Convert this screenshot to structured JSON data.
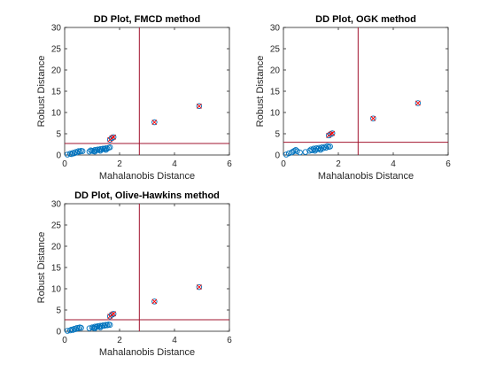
{
  "chart_data": [
    {
      "type": "scatter",
      "title": "DD Plot, FMCD method",
      "xlabel": "Mahalanobis Distance",
      "ylabel": "Robust Distance",
      "xlim": [
        0,
        6
      ],
      "ylim": [
        0,
        30
      ],
      "xticks": [
        "0",
        "2",
        "4",
        "6"
      ],
      "yticks": [
        "0",
        "5",
        "10",
        "15",
        "20",
        "25",
        "30"
      ],
      "cutoff_x": 2.72,
      "cutoff_y": 2.72,
      "grid": false,
      "colors": {
        "inlier": "#0072bd",
        "outlier_marker": "#ff0000",
        "cutoff_line": "#a2142f"
      },
      "inliers": [
        [
          0.1,
          0.1
        ],
        [
          0.2,
          0.3
        ],
        [
          0.25,
          0.2
        ],
        [
          0.3,
          0.5
        ],
        [
          0.35,
          0.4
        ],
        [
          0.4,
          0.7
        ],
        [
          0.45,
          0.6
        ],
        [
          0.5,
          0.9
        ],
        [
          0.55,
          0.8
        ],
        [
          0.6,
          1.0
        ],
        [
          0.65,
          0.9
        ],
        [
          0.9,
          0.8
        ],
        [
          1.0,
          1.0
        ],
        [
          1.05,
          0.9
        ],
        [
          1.1,
          1.2
        ],
        [
          1.15,
          1.1
        ],
        [
          1.2,
          1.3
        ],
        [
          1.25,
          1.2
        ],
        [
          1.3,
          1.4
        ],
        [
          1.35,
          1.3
        ],
        [
          1.4,
          1.5
        ],
        [
          1.45,
          1.4
        ],
        [
          1.5,
          1.6
        ],
        [
          1.55,
          1.5
        ],
        [
          1.6,
          1.7
        ],
        [
          1.65,
          1.8
        ],
        [
          1.1,
          0.8
        ],
        [
          1.3,
          1.0
        ],
        [
          1.5,
          1.2
        ],
        [
          0.95,
          1.1
        ]
      ],
      "outliers": [
        [
          1.65,
          3.6
        ],
        [
          1.72,
          4.0
        ],
        [
          1.78,
          4.2
        ],
        [
          3.27,
          7.7
        ],
        [
          4.9,
          11.5
        ]
      ]
    },
    {
      "type": "scatter",
      "title": "DD Plot, OGK method",
      "xlabel": "Mahalanobis Distance",
      "ylabel": "Robust Distance",
      "xlim": [
        0,
        6
      ],
      "ylim": [
        0,
        30
      ],
      "xticks": [
        "0",
        "2",
        "4",
        "6"
      ],
      "yticks": [
        "0",
        "5",
        "10",
        "15",
        "20",
        "25",
        "30"
      ],
      "cutoff_x": 2.72,
      "cutoff_y": 3.0,
      "grid": false,
      "colors": {
        "inlier": "#0072bd",
        "outlier_marker": "#ff0000",
        "cutoff_line": "#a2142f"
      },
      "inliers": [
        [
          0.1,
          0.1
        ],
        [
          0.2,
          0.4
        ],
        [
          0.3,
          0.6
        ],
        [
          0.35,
          0.8
        ],
        [
          0.4,
          1.0
        ],
        [
          0.45,
          1.2
        ],
        [
          0.5,
          0.9
        ],
        [
          0.6,
          0.6
        ],
        [
          0.8,
          0.7
        ],
        [
          0.95,
          1.0
        ],
        [
          1.0,
          1.3
        ],
        [
          1.05,
          1.1
        ],
        [
          1.1,
          1.5
        ],
        [
          1.15,
          1.3
        ],
        [
          1.2,
          1.6
        ],
        [
          1.25,
          1.4
        ],
        [
          1.3,
          1.7
        ],
        [
          1.35,
          1.5
        ],
        [
          1.4,
          1.8
        ],
        [
          1.45,
          1.6
        ],
        [
          1.5,
          1.9
        ],
        [
          1.55,
          1.7
        ],
        [
          1.6,
          2.1
        ],
        [
          1.65,
          1.9
        ],
        [
          1.7,
          2.0
        ],
        [
          1.15,
          1.0
        ],
        [
          1.35,
          1.2
        ]
      ],
      "outliers": [
        [
          1.65,
          4.6
        ],
        [
          1.72,
          4.9
        ],
        [
          1.78,
          5.1
        ],
        [
          3.27,
          8.6
        ],
        [
          4.9,
          12.2
        ]
      ]
    },
    {
      "type": "scatter",
      "title": "DD Plot, Olive-Hawkins method",
      "xlabel": "Mahalanobis Distance",
      "ylabel": "Robust Distance",
      "xlim": [
        0,
        6
      ],
      "ylim": [
        0,
        30
      ],
      "xticks": [
        "0",
        "2",
        "4",
        "6"
      ],
      "yticks": [
        "0",
        "5",
        "10",
        "15",
        "20",
        "25",
        "30"
      ],
      "cutoff_x": 2.72,
      "cutoff_y": 2.72,
      "grid": false,
      "colors": {
        "inlier": "#0072bd",
        "outlier_marker": "#ff0000",
        "cutoff_line": "#a2142f"
      },
      "inliers": [
        [
          0.1,
          0.1
        ],
        [
          0.2,
          0.2
        ],
        [
          0.25,
          0.4
        ],
        [
          0.3,
          0.3
        ],
        [
          0.35,
          0.6
        ],
        [
          0.4,
          0.5
        ],
        [
          0.45,
          0.8
        ],
        [
          0.5,
          0.7
        ],
        [
          0.55,
          0.9
        ],
        [
          0.6,
          0.8
        ],
        [
          0.9,
          0.7
        ],
        [
          1.0,
          0.9
        ],
        [
          1.05,
          0.8
        ],
        [
          1.1,
          1.1
        ],
        [
          1.15,
          1.0
        ],
        [
          1.2,
          1.2
        ],
        [
          1.25,
          1.1
        ],
        [
          1.3,
          1.3
        ],
        [
          1.35,
          1.2
        ],
        [
          1.4,
          1.4
        ],
        [
          1.45,
          1.3
        ],
        [
          1.5,
          1.5
        ],
        [
          1.55,
          1.4
        ],
        [
          1.6,
          1.6
        ],
        [
          1.65,
          1.5
        ],
        [
          1.1,
          0.7
        ],
        [
          1.3,
          0.9
        ]
      ],
      "outliers": [
        [
          1.65,
          3.5
        ],
        [
          1.72,
          3.9
        ],
        [
          1.78,
          4.1
        ],
        [
          3.27,
          7.0
        ],
        [
          4.9,
          10.4
        ]
      ]
    }
  ]
}
